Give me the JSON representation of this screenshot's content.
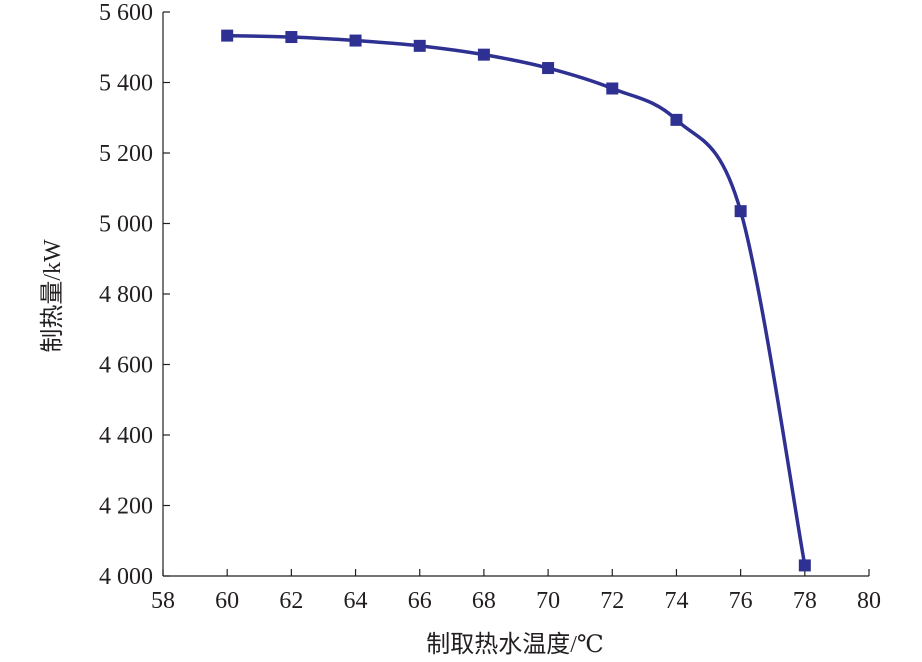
{
  "chart_data": {
    "type": "line",
    "title": "",
    "xlabel": "制取热水温度/℃",
    "ylabel": "制热量/kW",
    "xlim": [
      58,
      80
    ],
    "ylim": [
      4000,
      5600
    ],
    "xticks": [
      58,
      60,
      62,
      64,
      66,
      68,
      70,
      72,
      74,
      76,
      78,
      80
    ],
    "xtick_labels": [
      "58",
      "60",
      "62",
      "64",
      "66",
      "68",
      "70",
      "72",
      "74",
      "76",
      "78",
      "80"
    ],
    "yticks": [
      4000,
      4200,
      4400,
      4600,
      4800,
      5000,
      5200,
      5400,
      5600
    ],
    "ytick_labels": [
      "4 000",
      "4 200",
      "4 400",
      "4 600",
      "4 800",
      "5 000",
      "5 200",
      "5 400",
      "5 600"
    ],
    "grid": false,
    "series": [
      {
        "name": "制热量",
        "color": "#2e3192",
        "marker": "square",
        "x": [
          60,
          62,
          64,
          66,
          68,
          70,
          72,
          74,
          76,
          78
        ],
        "y": [
          5533,
          5529,
          5519,
          5504,
          5479,
          5441,
          5383,
          5294,
          5035,
          4030
        ]
      }
    ]
  }
}
